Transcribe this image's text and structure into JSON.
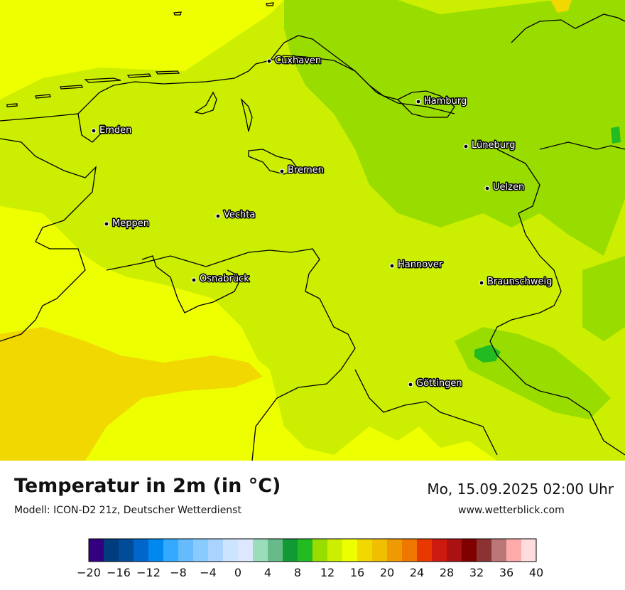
{
  "header": {
    "title": "Temperatur in 2m (in °C)",
    "model": "Modell: ICON-D2 21z, Deutscher Wetterdienst",
    "datetime": "Mo, 15.09.2025 02:00 Uhr",
    "website": "www.wetterblick.com"
  },
  "cities": [
    {
      "id": "cuxhaven",
      "name": "Cuxhaven"
    },
    {
      "id": "hamburg",
      "name": "Hamburg"
    },
    {
      "id": "emden",
      "name": "Emden"
    },
    {
      "id": "lueneburg",
      "name": "Lüneburg"
    },
    {
      "id": "bremen",
      "name": "Bremen"
    },
    {
      "id": "uelzen",
      "name": "Uelzen"
    },
    {
      "id": "vechta",
      "name": "Vechta"
    },
    {
      "id": "meppen",
      "name": "Meppen"
    },
    {
      "id": "hannover",
      "name": "Hannover"
    },
    {
      "id": "osnabrueck",
      "name": "Osnabrück"
    },
    {
      "id": "braunschweig",
      "name": "Braunschweig"
    },
    {
      "id": "goettingen",
      "name": "Göttingen"
    }
  ],
  "colorbar": {
    "tick_labels": [
      "−20",
      "−16",
      "−12",
      "−8",
      "−4",
      "0",
      "4",
      "8",
      "12",
      "16",
      "20",
      "24",
      "28",
      "32",
      "36",
      "40"
    ],
    "colors": [
      "#33007f",
      "#003d7f",
      "#004c99",
      "#0066cc",
      "#0088ee",
      "#33aaff",
      "#66bbff",
      "#88ccff",
      "#aad4ff",
      "#cce4ff",
      "#dde8ff",
      "#99ddbb",
      "#66bb88",
      "#119933",
      "#22bb22",
      "#99dd00",
      "#ccee00",
      "#eeff00",
      "#f0d800",
      "#f0c000",
      "#ee9a00",
      "#ee7700",
      "#e83800",
      "#cc1a11",
      "#aa1111",
      "#800000",
      "#8b3333",
      "#bb7777",
      "#ffaaaa",
      "#ffdddd"
    ]
  },
  "map_colors": {
    "t10_12": "#99dd00",
    "t12_14": "#ccee00",
    "t14_16": "#eeff00",
    "t16_18": "#f0d800",
    "t8_10": "#22bb22"
  }
}
